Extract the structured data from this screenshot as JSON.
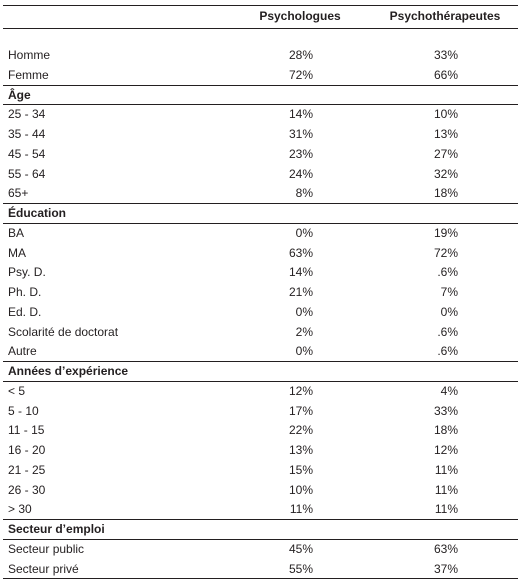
{
  "table": {
    "columns": [
      "Psychologues",
      "Psychothérapeutes"
    ],
    "sections": [
      {
        "rows": [
          [
            "Homme",
            "28%",
            "33%"
          ],
          [
            "Femme",
            "72%",
            "66%"
          ]
        ]
      },
      {
        "title": "Âge",
        "rows": [
          [
            "25 - 34",
            "14%",
            "10%"
          ],
          [
            "35 - 44",
            "31%",
            "13%"
          ],
          [
            "45 - 54",
            "23%",
            "27%"
          ],
          [
            "55 - 64",
            "24%",
            "32%"
          ],
          [
            "65+",
            "8%",
            "18%"
          ]
        ]
      },
      {
        "title": "Éducation",
        "rows": [
          [
            "BA",
            "0%",
            "19%"
          ],
          [
            "MA",
            "63%",
            "72%"
          ],
          [
            "Psy. D.",
            "14%",
            ".6%"
          ],
          [
            "Ph. D.",
            "21%",
            "7%"
          ],
          [
            "Ed. D.",
            "0%",
            "0%"
          ],
          [
            "Scolarité de doctorat",
            "2%",
            ".6%"
          ],
          [
            "Autre",
            "0%",
            ".6%"
          ]
        ]
      },
      {
        "title": "Années d’expérience",
        "rows": [
          [
            "< 5",
            "12%",
            "4%"
          ],
          [
            "5 - 10",
            "17%",
            "33%"
          ],
          [
            "11 - 15",
            "22%",
            "18%"
          ],
          [
            "16 - 20",
            "13%",
            "12%"
          ],
          [
            "21 - 25",
            "15%",
            "11%"
          ],
          [
            "26 - 30",
            "10%",
            "11%"
          ],
          [
            "> 30",
            "11%",
            "11%"
          ]
        ]
      },
      {
        "title": "Secteur d’emploi",
        "rows": [
          [
            "Secteur public",
            "45%",
            "63%"
          ],
          [
            "Secteur privé",
            "55%",
            "37%"
          ]
        ]
      }
    ]
  }
}
